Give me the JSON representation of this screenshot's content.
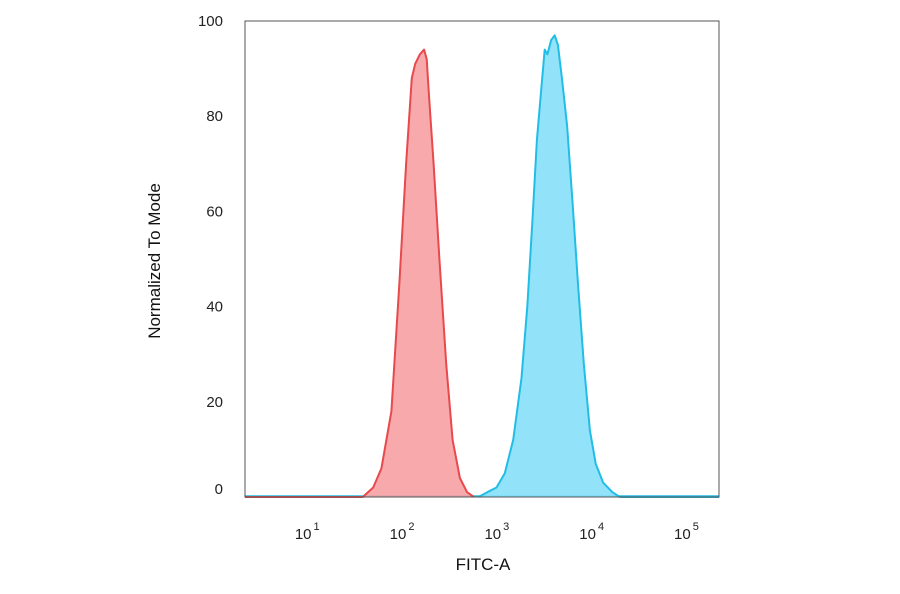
{
  "chart_data": {
    "type": "area",
    "xlabel": "FITC-A",
    "ylabel": "Normalized To Mode",
    "x_scale": "log",
    "xlim": [
      2,
      200000
    ],
    "ylim": [
      0,
      100
    ],
    "x_ticks": [
      {
        "value": 10,
        "base": "10",
        "exp": "1"
      },
      {
        "value": 100,
        "base": "10",
        "exp": "2"
      },
      {
        "value": 1000,
        "base": "10",
        "exp": "3"
      },
      {
        "value": 10000,
        "base": "10",
        "exp": "4"
      },
      {
        "value": 100000,
        "base": "10",
        "exp": "5"
      }
    ],
    "y_ticks": [
      0,
      20,
      40,
      60,
      80,
      100
    ],
    "grid": false,
    "legend": "none",
    "series": [
      {
        "color": "#e8494c",
        "fill": "#f6a0a3",
        "points": [
          [
            2,
            0
          ],
          [
            35,
            0
          ],
          [
            45,
            2
          ],
          [
            55,
            6
          ],
          [
            70,
            18
          ],
          [
            85,
            45
          ],
          [
            100,
            70
          ],
          [
            115,
            88
          ],
          [
            125,
            91
          ],
          [
            140,
            93
          ],
          [
            155,
            94
          ],
          [
            165,
            92
          ],
          [
            175,
            84
          ],
          [
            195,
            70
          ],
          [
            225,
            50
          ],
          [
            265,
            28
          ],
          [
            310,
            12
          ],
          [
            370,
            4
          ],
          [
            440,
            1
          ],
          [
            520,
            0
          ]
        ]
      },
      {
        "color": "#22bde6",
        "fill": "#86e0fa",
        "points": [
          [
            580,
            0
          ],
          [
            720,
            1
          ],
          [
            900,
            2
          ],
          [
            1100,
            5
          ],
          [
            1350,
            12
          ],
          [
            1650,
            25
          ],
          [
            1900,
            40
          ],
          [
            2150,
            58
          ],
          [
            2400,
            75
          ],
          [
            2700,
            87
          ],
          [
            2900,
            94
          ],
          [
            3100,
            93
          ],
          [
            3400,
            96
          ],
          [
            3700,
            97
          ],
          [
            4000,
            95
          ],
          [
            4400,
            88
          ],
          [
            5000,
            78
          ],
          [
            5700,
            62
          ],
          [
            6500,
            45
          ],
          [
            7500,
            28
          ],
          [
            8700,
            14
          ],
          [
            10000,
            7
          ],
          [
            12000,
            3
          ],
          [
            15000,
            1
          ],
          [
            18000,
            0
          ],
          [
            200000,
            0
          ]
        ]
      }
    ]
  }
}
